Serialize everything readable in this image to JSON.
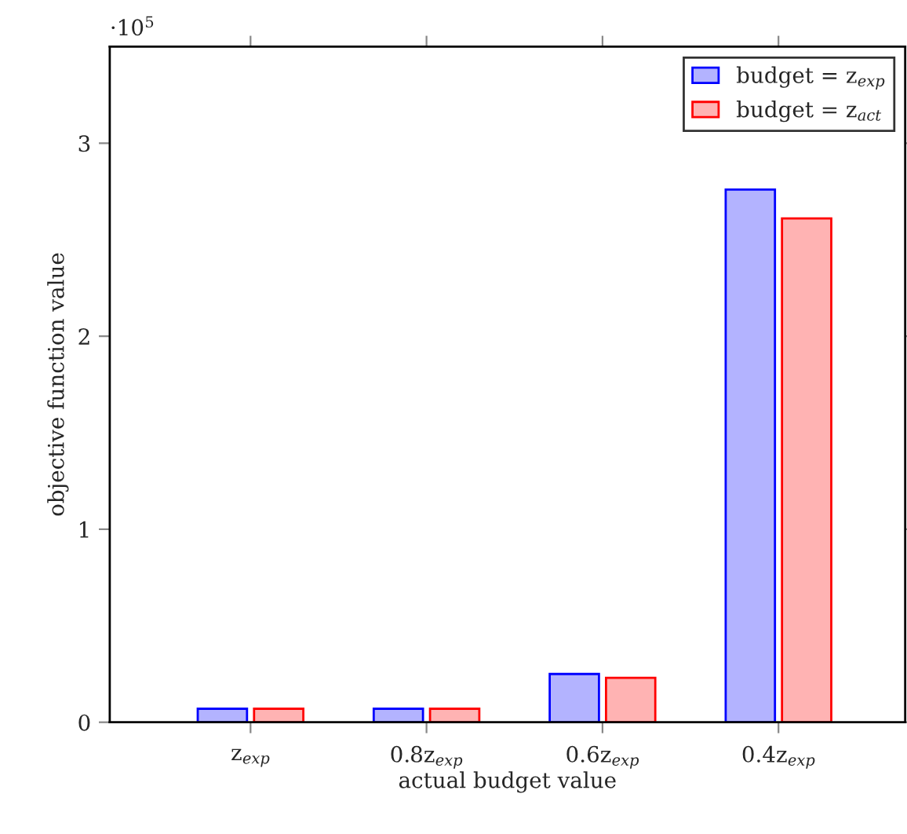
{
  "chart_data": {
    "type": "bar",
    "xlabel": "actual budget value",
    "ylabel": "objective function value",
    "categories": [
      "z$_{exp}$",
      "0.8z$_{exp}$",
      "0.6z$_{exp}$",
      "0.4z$_{exp}$"
    ],
    "series": [
      {
        "name": "budget = z$_{exp}$",
        "color": "#b3b3ff",
        "values": [
          0.07,
          0.07,
          0.25,
          2.76
        ]
      },
      {
        "name": "budget = z$_{act}$",
        "color": "#ffb3b3",
        "values": [
          0.07,
          0.07,
          0.23,
          2.61
        ]
      }
    ],
    "ylim": [
      0,
      3.5
    ],
    "yticks": [
      0,
      1,
      2,
      3
    ],
    "annotations": [
      "·10$^{5}$"
    ],
    "legend": "top right",
    "grid": false
  }
}
